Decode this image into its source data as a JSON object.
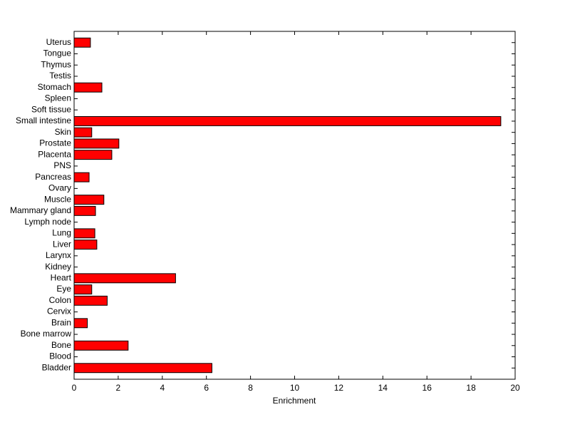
{
  "chart_data": {
    "type": "barh",
    "xlabel": "Enrichment",
    "categories": [
      "Bladder",
      "Blood",
      "Bone",
      "Bone marrow",
      "Brain",
      "Cervix",
      "Colon",
      "Eye",
      "Heart",
      "Kidney",
      "Larynx",
      "Liver",
      "Lung",
      "Lymph node",
      "Mammary gland",
      "Muscle",
      "Ovary",
      "Pancreas",
      "PNS",
      "Placenta",
      "Prostate",
      "Skin",
      "Small intestine",
      "Soft tissue",
      "Spleen",
      "Stomach",
      "Testis",
      "Thymus",
      "Tongue",
      "Uterus"
    ],
    "values": [
      6.25,
      0,
      2.45,
      0,
      0.6,
      0,
      1.5,
      0.8,
      4.6,
      0,
      0,
      1.03,
      0.94,
      0,
      0.97,
      1.35,
      0,
      0.68,
      0,
      1.71,
      2.03,
      0.8,
      19.35,
      0,
      0,
      1.26,
      0,
      0,
      0,
      0.74
    ],
    "color": "#ff0000",
    "xlim": [
      0,
      20
    ],
    "xticks": [
      0,
      2,
      4,
      6,
      8,
      10,
      12,
      14,
      16,
      18,
      20
    ],
    "grid": false
  }
}
